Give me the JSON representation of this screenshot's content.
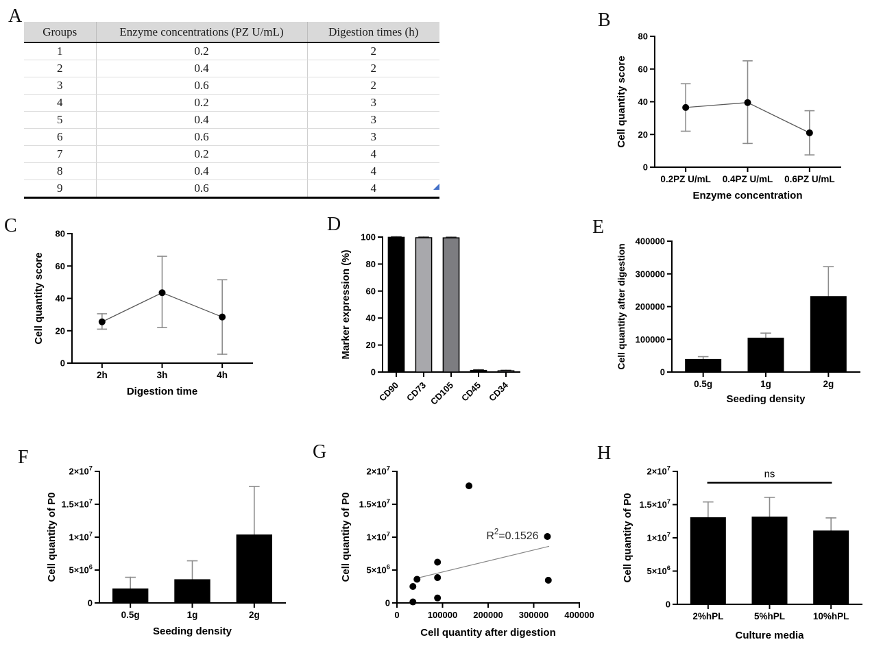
{
  "figure": {
    "background": "#ffffff"
  },
  "panels": {
    "A": {
      "letter": "A",
      "table": {
        "headers": [
          "Groups",
          "Enzyme concentrations (PZ U/mL)",
          "Digestion times (h)"
        ],
        "rows": [
          [
            "1",
            "0.2",
            "2"
          ],
          [
            "2",
            "0.4",
            "2"
          ],
          [
            "3",
            "0.6",
            "2"
          ],
          [
            "4",
            "0.2",
            "3"
          ],
          [
            "5",
            "0.4",
            "3"
          ],
          [
            "6",
            "0.6",
            "3"
          ],
          [
            "7",
            "0.2",
            "4"
          ],
          [
            "8",
            "0.4",
            "4"
          ],
          [
            "9",
            "0.6",
            "4"
          ]
        ],
        "header_bg": "#d9d9d9",
        "handle_color": "#4370c8"
      }
    },
    "B": {
      "letter": "B"
    },
    "C": {
      "letter": "C"
    },
    "D": {
      "letter": "D"
    },
    "E": {
      "letter": "E"
    },
    "F": {
      "letter": "F"
    },
    "G": {
      "letter": "G"
    },
    "H": {
      "letter": "H"
    }
  },
  "chart_data": [
    {
      "id": "B",
      "type": "pointline",
      "categories": [
        "0.2PZ U/mL",
        "0.4PZ U/mL",
        "0.6PZ U/mL"
      ],
      "values": [
        36.5,
        39.5,
        21
      ],
      "err_low": [
        22,
        14.5,
        7.5
      ],
      "err_high": [
        51,
        65,
        34.5
      ],
      "ylim": [
        0,
        80
      ],
      "yticks": [
        0,
        20,
        40,
        60,
        80
      ],
      "ytick_labels": [
        "0",
        "20",
        "40",
        "60",
        "80"
      ],
      "ylabel": "Cell quantity score",
      "xlabel": "Enzyme concentration",
      "point_color": "#000000",
      "line_color": "#5a5a5a",
      "err_color": "#8c8c8c",
      "grid": false
    },
    {
      "id": "C",
      "type": "pointline",
      "categories": [
        "2h",
        "3h",
        "4h"
      ],
      "values": [
        25.5,
        43.5,
        28.5
      ],
      "err_low": [
        21,
        22,
        5.5
      ],
      "err_high": [
        30.5,
        66,
        51.5
      ],
      "ylim": [
        0,
        80
      ],
      "yticks": [
        0,
        20,
        40,
        60,
        80
      ],
      "ytick_labels": [
        "0",
        "20",
        "40",
        "60",
        "80"
      ],
      "ylabel": "Cell quantity score",
      "xlabel": "Digestion time",
      "point_color": "#000000",
      "line_color": "#5a5a5a",
      "err_color": "#8c8c8c",
      "grid": false
    },
    {
      "id": "D",
      "type": "bar",
      "categories": [
        "CD90",
        "CD73",
        "CD105",
        "CD45",
        "CD34"
      ],
      "values": [
        99.8,
        99.5,
        99.4,
        1.2,
        0.9
      ],
      "err_high": [
        100.2,
        100,
        99.9,
        1.7,
        1.3
      ],
      "bar_colors": [
        "#000000",
        "#a8a8ac",
        "#7d7d81",
        "#000000",
        "#a8a8ac"
      ],
      "bar_stroke": "#000000",
      "ylim": [
        0,
        100
      ],
      "yticks": [
        0,
        20,
        40,
        60,
        80,
        100
      ],
      "ytick_labels": [
        "0",
        "20",
        "40",
        "60",
        "80",
        "100"
      ],
      "ylabel": "Marker expression (%)",
      "xlabel": "",
      "xtick_rotation": 45,
      "err_color": "#3a3a3a",
      "grid": false
    },
    {
      "id": "E",
      "type": "bar",
      "categories": [
        "0.5g",
        "1g",
        "2g"
      ],
      "values": [
        40000,
        105000,
        232000
      ],
      "err_high": [
        47000,
        119000,
        322000
      ],
      "bar_colors": [
        "#000000",
        "#000000",
        "#000000"
      ],
      "ylim": [
        0,
        400000
      ],
      "yticks": [
        0,
        100000,
        200000,
        300000,
        400000
      ],
      "ytick_labels": [
        "0",
        "100000",
        "200000",
        "300000",
        "400000"
      ],
      "ylabel": "Cell quantity after digestion",
      "xlabel": "Seeding density",
      "err_color": "#8c8c8c",
      "grid": false
    },
    {
      "id": "F",
      "type": "bar",
      "categories": [
        "0.5g",
        "1g",
        "2g"
      ],
      "values": [
        2200000,
        3600000,
        10400000
      ],
      "err_high": [
        3900000,
        6400000,
        17700000
      ],
      "bar_colors": [
        "#000000",
        "#000000",
        "#000000"
      ],
      "ylim": [
        0,
        20000000
      ],
      "yticks": [
        0,
        5000000,
        10000000,
        15000000,
        20000000
      ],
      "ytick_labels": [
        "0",
        "5×10^6",
        "1×10^7",
        "1.5×10^7",
        "2×10^7"
      ],
      "ylabel": "Cell quantity of P0",
      "xlabel": "Seeding density",
      "err_color": "#8c8c8c",
      "grid": false
    },
    {
      "id": "G",
      "type": "scatter",
      "points": [
        [
          35000,
          150000
        ],
        [
          35000,
          2500000
        ],
        [
          44000,
          3600000
        ],
        [
          89000,
          750000
        ],
        [
          89000,
          3850000
        ],
        [
          89000,
          6200000
        ],
        [
          158000,
          17800000
        ],
        [
          330000,
          10100000
        ],
        [
          332000,
          3450000
        ]
      ],
      "trendline": {
        "x1": 40000,
        "y1": 3700000,
        "x2": 333000,
        "y2": 8600000
      },
      "annotation": {
        "text": "R^2=0.1526",
        "x": 196000,
        "y": 9700000
      },
      "xlim": [
        0,
        400000
      ],
      "xticks": [
        0,
        100000,
        200000,
        300000,
        400000
      ],
      "xtick_labels": [
        "0",
        "100000",
        "200000",
        "300000",
        "400000"
      ],
      "ylim": [
        0,
        20000000
      ],
      "yticks": [
        0,
        5000000,
        10000000,
        15000000,
        20000000
      ],
      "ytick_labels": [
        "0",
        "5×10^6",
        "1×10^7",
        "1.5×10^7",
        "2×10^7"
      ],
      "ylabel": "Cell quantity of P0",
      "xlabel": "Cell quantity after digestion",
      "point_color": "#000000",
      "line_color": "#888888",
      "grid": false
    },
    {
      "id": "H",
      "type": "bar",
      "categories": [
        "2%hPL",
        "5%hPL",
        "10%hPL"
      ],
      "values": [
        13100000,
        13200000,
        11100000
      ],
      "err_high": [
        15400000,
        16100000,
        13000000
      ],
      "bar_colors": [
        "#000000",
        "#000000",
        "#000000"
      ],
      "ylim": [
        0,
        20000000
      ],
      "yticks": [
        0,
        5000000,
        10000000,
        15000000,
        20000000
      ],
      "ytick_labels": [
        "0",
        "5×10^6",
        "1×10^7",
        "1.5×10^7",
        "2×10^7"
      ],
      "ylabel": "Cell quantity of P0",
      "xlabel": "Culture media",
      "significance": {
        "label": "ns",
        "y": 18300000,
        "from": 0,
        "to": 2
      },
      "err_color": "#8c8c8c",
      "grid": false
    }
  ]
}
